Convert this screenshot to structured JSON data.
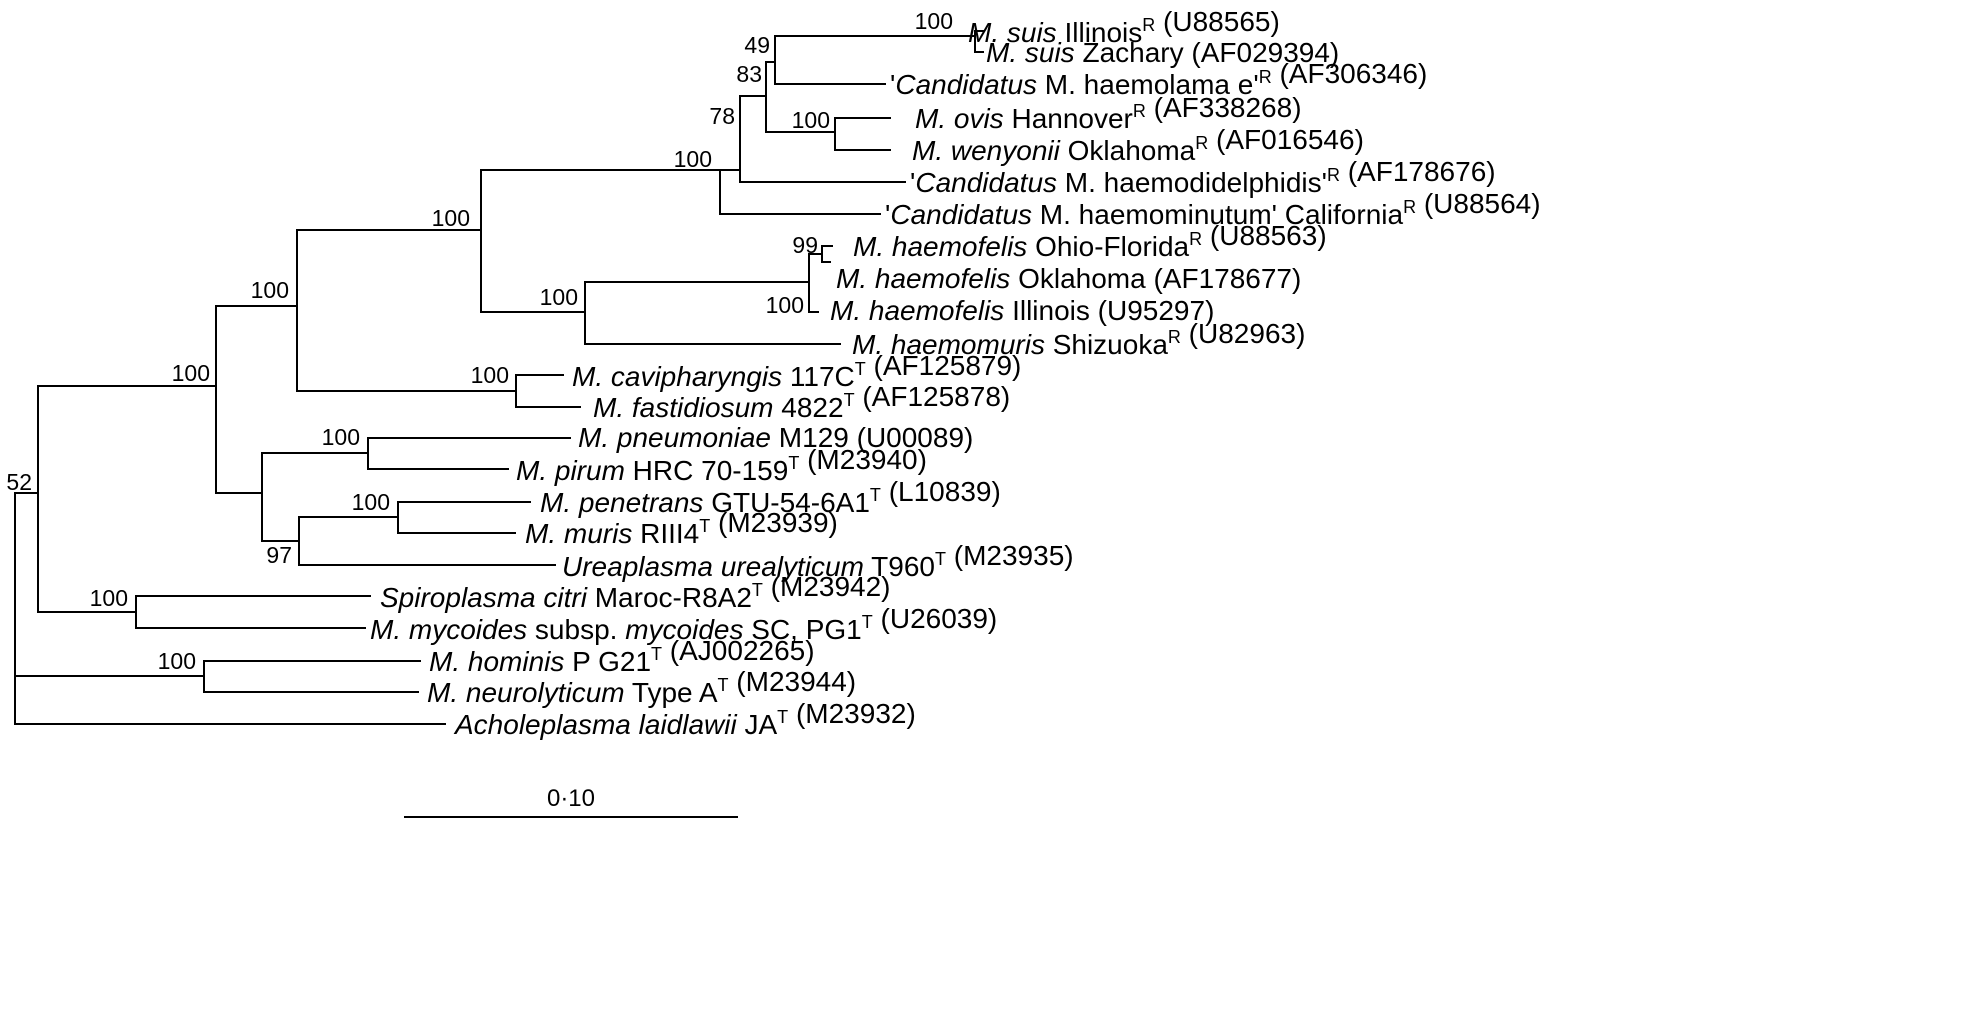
{
  "taxa": [
    {
      "id": "suis-illinois",
      "parts": [
        {
          "t": "M. suis",
          "i": true
        },
        {
          "t": " Illinois"
        },
        {
          "t": "R",
          "sup": true
        },
        {
          "t": " (U88565)"
        }
      ]
    },
    {
      "id": "suis-zachary",
      "parts": [
        {
          "t": "M. suis",
          "i": true
        },
        {
          "t": " Zachary (AF029394)"
        }
      ]
    },
    {
      "id": "haemolamae",
      "parts": [
        {
          "t": "'"
        },
        {
          "t": "Candidatus",
          "i": true
        },
        {
          "t": " M. haemolama e'"
        },
        {
          "t": "R",
          "sup": true
        },
        {
          "t": " (AF306346)"
        }
      ]
    },
    {
      "id": "ovis",
      "parts": [
        {
          "t": "M. ovis",
          "i": true
        },
        {
          "t": " Hannover"
        },
        {
          "t": "R",
          "sup": true
        },
        {
          "t": " (AF338268)"
        }
      ]
    },
    {
      "id": "wenyonii",
      "parts": [
        {
          "t": "M. wenyonii",
          "i": true
        },
        {
          "t": " Oklahoma"
        },
        {
          "t": "R",
          "sup": true
        },
        {
          "t": " (AF016546)"
        }
      ]
    },
    {
      "id": "haemodidelphidis",
      "parts": [
        {
          "t": "'"
        },
        {
          "t": "Candidatus",
          "i": true
        },
        {
          "t": " M. haemodidelphidis'"
        },
        {
          "t": "R",
          "sup": true
        },
        {
          "t": " (AF178676)"
        }
      ]
    },
    {
      "id": "haemominutum",
      "parts": [
        {
          "t": "'"
        },
        {
          "t": "Candidatus",
          "i": true
        },
        {
          "t": " M. haemominutum' California"
        },
        {
          "t": "R",
          "sup": true
        },
        {
          "t": " (U88564)"
        }
      ]
    },
    {
      "id": "haemofelis-ohio",
      "parts": [
        {
          "t": "M. haemofelis",
          "i": true
        },
        {
          "t": " Ohio-Florida"
        },
        {
          "t": "R",
          "sup": true
        },
        {
          "t": " (U88563)"
        }
      ]
    },
    {
      "id": "haemofelis-oklahoma",
      "parts": [
        {
          "t": "M. haemofelis",
          "i": true
        },
        {
          "t": " Oklahoma (AF178677)"
        }
      ]
    },
    {
      "id": "haemofelis-illinois",
      "parts": [
        {
          "t": "M. haemofelis",
          "i": true
        },
        {
          "t": " Illinois (U95297)"
        }
      ]
    },
    {
      "id": "haemomuris",
      "parts": [
        {
          "t": "M. haemomuris",
          "i": true
        },
        {
          "t": " Shizuoka"
        },
        {
          "t": "R",
          "sup": true
        },
        {
          "t": " (U82963)"
        }
      ]
    },
    {
      "id": "cavipharyngis",
      "parts": [
        {
          "t": "M. cavipharyngis",
          "i": true
        },
        {
          "t": " 117C"
        },
        {
          "t": "T",
          "sup": true
        },
        {
          "t": " (AF125879)"
        }
      ]
    },
    {
      "id": "fastidiosum",
      "parts": [
        {
          "t": "M. fastidiosum",
          "i": true
        },
        {
          "t": " 4822"
        },
        {
          "t": "T",
          "sup": true
        },
        {
          "t": " (AF125878)"
        }
      ]
    },
    {
      "id": "pneumoniae",
      "parts": [
        {
          "t": "M. pneumoniae",
          "i": true
        },
        {
          "t": " M129 (U00089)"
        }
      ]
    },
    {
      "id": "pirum",
      "parts": [
        {
          "t": "M. pirum",
          "i": true
        },
        {
          "t": " HRC 70-159"
        },
        {
          "t": "T",
          "sup": true
        },
        {
          "t": " (M23940)"
        }
      ]
    },
    {
      "id": "penetrans",
      "parts": [
        {
          "t": "M. penetrans",
          "i": true
        },
        {
          "t": " GTU-54-6A1"
        },
        {
          "t": "T",
          "sup": true
        },
        {
          "t": " (L10839)"
        }
      ]
    },
    {
      "id": "muris",
      "parts": [
        {
          "t": "M. muris",
          "i": true
        },
        {
          "t": " RIII4"
        },
        {
          "t": "T",
          "sup": true
        },
        {
          "t": " (M23939)"
        }
      ]
    },
    {
      "id": "ureaplasma",
      "parts": [
        {
          "t": "Ureaplasma urealyticum",
          "i": true
        },
        {
          "t": " T960"
        },
        {
          "t": "T",
          "sup": true
        },
        {
          "t": " (M23935)"
        }
      ]
    },
    {
      "id": "spiroplasma",
      "parts": [
        {
          "t": "Spiroplasma citri",
          "i": true
        },
        {
          "t": " Maroc-R8A2"
        },
        {
          "t": "T",
          "sup": true
        },
        {
          "t": " (M23942)"
        }
      ]
    },
    {
      "id": "mycoides",
      "parts": [
        {
          "t": "M. mycoides",
          "i": true
        },
        {
          "t": " subsp. "
        },
        {
          "t": "mycoides",
          "i": true
        },
        {
          "t": " SC, PG1"
        },
        {
          "t": "T",
          "sup": true
        },
        {
          "t": " (U26039)"
        }
      ]
    },
    {
      "id": "hominis",
      "parts": [
        {
          "t": "M. hominis",
          "i": true
        },
        {
          "t": "  P  G21"
        },
        {
          "t": "T",
          "sup": true
        },
        {
          "t": " (AJ002265)"
        }
      ]
    },
    {
      "id": "neurolyticum",
      "parts": [
        {
          "t": "M. neurolyticum",
          "i": true
        },
        {
          "t": " Type A"
        },
        {
          "t": "T",
          "sup": true
        },
        {
          "t": " (M23944)"
        }
      ]
    },
    {
      "id": "acholeplasma",
      "parts": [
        {
          "t": "Acholeplasma laidlawii",
          "i": true
        },
        {
          "t": " JA"
        },
        {
          "t": "T",
          "sup": true
        },
        {
          "t": " (M23932)"
        }
      ]
    }
  ],
  "bootstrap": [
    {
      "id": "suis",
      "value": "100"
    },
    {
      "id": "suis-haemolamae",
      "value": "49"
    },
    {
      "id": "suis-ovis",
      "value": "83"
    },
    {
      "id": "ovis-wenyonii",
      "value": "100"
    },
    {
      "id": "suis-haemodidelphidis",
      "value": "78"
    },
    {
      "id": "haemotropic-group",
      "value": "100"
    },
    {
      "id": "haemo-main",
      "value": "100"
    },
    {
      "id": "haemofelis-ohio",
      "value": "99"
    },
    {
      "id": "haemofelis-illinois",
      "value": "100"
    },
    {
      "id": "haemofelis-haemomuris",
      "value": "100"
    },
    {
      "id": "haemo-cavipharyngis",
      "value": "100"
    },
    {
      "id": "cavipharyngis-fastidiosum",
      "value": "100"
    },
    {
      "id": "pneumoniae-group",
      "value": "100"
    },
    {
      "id": "pneumoniae-pirum",
      "value": "100"
    },
    {
      "id": "penetrans-muris",
      "value": "100"
    },
    {
      "id": "penetrans-ureaplasma",
      "value": "97"
    },
    {
      "id": "spiroplasma-mycoides",
      "value": "100"
    },
    {
      "id": "hominis-neurolyticum",
      "value": "100"
    },
    {
      "id": "root",
      "value": "52"
    }
  ],
  "scale": {
    "label": "0·10"
  }
}
